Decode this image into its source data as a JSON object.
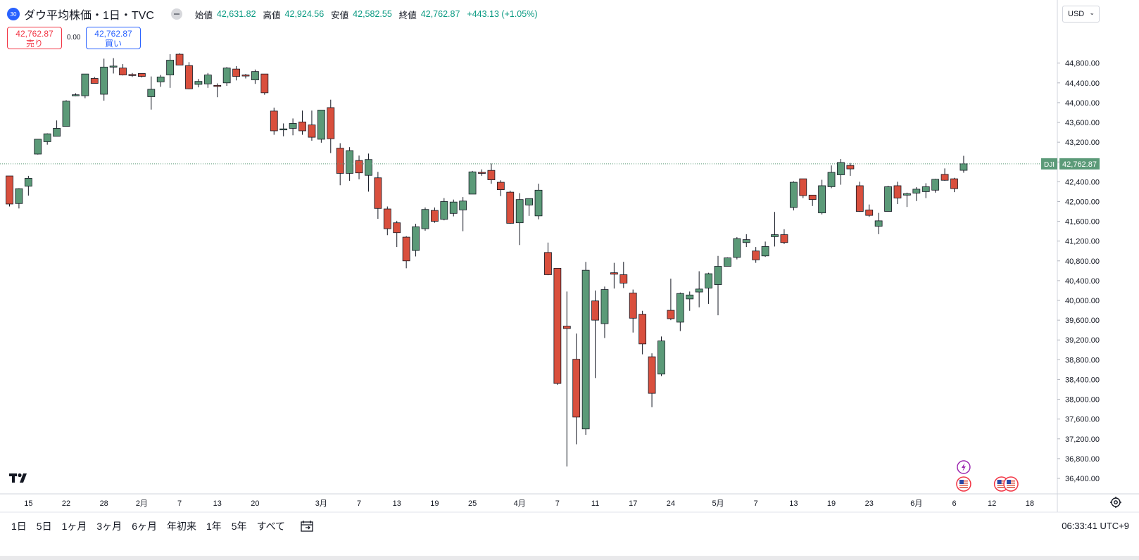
{
  "header": {
    "badge": "30",
    "symbol_title": "ダウ平均株価・1日・TVC",
    "open_label": "始値",
    "open_value": "42,631.82",
    "high_label": "高値",
    "high_value": "42,924.56",
    "low_label": "安値",
    "low_value": "42,582.55",
    "close_label": "終値",
    "close_value": "42,762.87",
    "change": "+443.13 (+1.05%)"
  },
  "trade": {
    "sell_price": "42,762.87",
    "sell_label": "売り",
    "spread": "0.00",
    "buy_price": "42,762.87",
    "buy_label": "買い"
  },
  "currency": {
    "value": "USD"
  },
  "ranges": [
    "1日",
    "5日",
    "1ヶ月",
    "3ヶ月",
    "6ヶ月",
    "年初来",
    "1年",
    "5年",
    "すべて"
  ],
  "clock": "06:33:41 UTC+9",
  "icons": [
    "visibility-eye-icon",
    "chevron-down-icon",
    "tradingview-logo-icon",
    "go-to-date-icon",
    "chart-settings-icon",
    "lightning-event-icon",
    "us-flag-event-icon"
  ],
  "colors": {
    "up": "#5b9a78",
    "down": "#d94f3d",
    "last_price_line": "#5b9a78"
  },
  "chart_data": {
    "type": "candlestick",
    "symbol_label": "DJI",
    "last_price": 42762.87,
    "ylim": [
      36200,
      45100
    ],
    "y_ticks": [
      36400,
      36800,
      37200,
      37600,
      38000,
      38400,
      38800,
      39200,
      39600,
      40000,
      40400,
      40800,
      41200,
      41600,
      42000,
      42400,
      42800,
      43200,
      43600,
      44000,
      44400,
      44800
    ],
    "x_labels": [
      {
        "text": "15",
        "index": 2
      },
      {
        "text": "22",
        "index": 6
      },
      {
        "text": "28",
        "index": 10
      },
      {
        "text": "2月",
        "index": 14
      },
      {
        "text": "7",
        "index": 18
      },
      {
        "text": "13",
        "index": 22
      },
      {
        "text": "20",
        "index": 26
      },
      {
        "text": "3月",
        "index": 33
      },
      {
        "text": "7",
        "index": 37
      },
      {
        "text": "13",
        "index": 41
      },
      {
        "text": "19",
        "index": 45
      },
      {
        "text": "25",
        "index": 49
      },
      {
        "text": "4月",
        "index": 54
      },
      {
        "text": "7",
        "index": 58
      },
      {
        "text": "11",
        "index": 62
      },
      {
        "text": "17",
        "index": 66
      },
      {
        "text": "24",
        "index": 70
      },
      {
        "text": "5月",
        "index": 75
      },
      {
        "text": "7",
        "index": 79
      },
      {
        "text": "13",
        "index": 83
      },
      {
        "text": "19",
        "index": 87
      },
      {
        "text": "23",
        "index": 91
      },
      {
        "text": "6月",
        "index": 96
      },
      {
        "text": "6",
        "index": 100
      },
      {
        "text": "12",
        "index": 104
      },
      {
        "text": "18",
        "index": 108
      }
    ],
    "candles": [
      [
        42518,
        42518,
        41900,
        41950
      ],
      [
        41960,
        42270,
        41860,
        42260
      ],
      [
        42310,
        42520,
        42120,
        42470
      ],
      [
        42960,
        43240,
        42950,
        43260
      ],
      [
        43210,
        43380,
        43150,
        43370
      ],
      [
        43320,
        43640,
        43320,
        43480
      ],
      [
        43520,
        44050,
        43520,
        44030
      ],
      [
        44150,
        44190,
        44130,
        44160
      ],
      [
        44140,
        44570,
        44090,
        44580
      ],
      [
        44490,
        44520,
        44390,
        44390
      ],
      [
        44170,
        44890,
        44040,
        44720
      ],
      [
        44720,
        44900,
        44590,
        44740
      ],
      [
        44700,
        44780,
        44550,
        44560
      ],
      [
        44570,
        44600,
        44520,
        44560
      ],
      [
        44590,
        44590,
        44510,
        44530
      ],
      [
        44120,
        44530,
        43860,
        44270
      ],
      [
        44420,
        44560,
        44320,
        44520
      ],
      [
        44560,
        44980,
        44300,
        44860
      ],
      [
        44980,
        45000,
        44810,
        44760
      ],
      [
        44750,
        44820,
        44270,
        44280
      ],
      [
        44370,
        44480,
        44310,
        44430
      ],
      [
        44380,
        44600,
        44300,
        44560
      ],
      [
        44350,
        44390,
        44110,
        44340
      ],
      [
        44400,
        44720,
        44340,
        44700
      ],
      [
        44680,
        44740,
        44450,
        44530
      ],
      [
        44560,
        44580,
        44490,
        44550
      ],
      [
        44460,
        44670,
        44380,
        44630
      ],
      [
        44580,
        44580,
        44160,
        44200
      ],
      [
        43830,
        43900,
        43350,
        43430
      ],
      [
        43450,
        43580,
        43320,
        43470
      ],
      [
        43480,
        43680,
        43340,
        43580
      ],
      [
        43610,
        43840,
        43350,
        43430
      ],
      [
        43550,
        43840,
        43230,
        43300
      ],
      [
        43260,
        43830,
        43190,
        43850
      ],
      [
        43900,
        44060,
        42980,
        43270
      ],
      [
        43080,
        43180,
        42330,
        42570
      ],
      [
        42570,
        43100,
        42420,
        43030
      ],
      [
        42830,
        42930,
        42450,
        42580
      ],
      [
        42530,
        42970,
        42200,
        42850
      ],
      [
        42480,
        42600,
        41650,
        41860
      ],
      [
        41850,
        41900,
        41320,
        41450
      ],
      [
        41570,
        41610,
        41080,
        41370
      ],
      [
        41280,
        41300,
        40650,
        40800
      ],
      [
        41010,
        41550,
        40890,
        41490
      ],
      [
        41450,
        41880,
        41410,
        41840
      ],
      [
        41820,
        41880,
        41570,
        41600
      ],
      [
        41640,
        42070,
        41620,
        42000
      ],
      [
        41760,
        42040,
        41700,
        41990
      ],
      [
        41830,
        42090,
        41400,
        42010
      ],
      [
        42150,
        42620,
        42150,
        42600
      ],
      [
        42590,
        42650,
        42520,
        42580
      ],
      [
        42630,
        42770,
        42360,
        42440
      ],
      [
        42390,
        42430,
        42110,
        42240
      ],
      [
        42190,
        42220,
        41550,
        41560
      ],
      [
        41570,
        42170,
        41120,
        42040
      ],
      [
        41930,
        42030,
        41710,
        42060
      ],
      [
        41710,
        42360,
        41640,
        42230
      ],
      [
        40970,
        41170,
        40510,
        40520
      ],
      [
        40650,
        40650,
        38290,
        38320
      ],
      [
        39480,
        40180,
        36640,
        39430
      ],
      [
        38810,
        39330,
        37090,
        37640
      ],
      [
        37400,
        40780,
        37280,
        40610
      ],
      [
        39990,
        40200,
        38430,
        39600
      ],
      [
        39530,
        40280,
        39240,
        40220
      ],
      [
        40560,
        40760,
        40240,
        40530
      ],
      [
        40520,
        40780,
        40250,
        40350
      ],
      [
        40150,
        40220,
        39350,
        39640
      ],
      [
        39720,
        39790,
        38910,
        39120
      ],
      [
        38860,
        38930,
        37840,
        38120
      ],
      [
        38510,
        39270,
        38470,
        39180
      ],
      [
        39800,
        40440,
        39600,
        39630
      ],
      [
        39560,
        40160,
        39380,
        40140
      ],
      [
        40030,
        40180,
        39790,
        40110
      ],
      [
        40170,
        40590,
        39860,
        40230
      ],
      [
        40250,
        40560,
        39930,
        40540
      ],
      [
        40320,
        40900,
        39700,
        40690
      ],
      [
        40690,
        40870,
        40690,
        40860
      ],
      [
        40870,
        41280,
        40830,
        41250
      ],
      [
        41170,
        41340,
        41080,
        41230
      ],
      [
        41000,
        41080,
        40760,
        40820
      ],
      [
        40900,
        41190,
        40880,
        41090
      ],
      [
        41290,
        41790,
        41090,
        41330
      ],
      [
        41330,
        41440,
        41140,
        41170
      ],
      [
        41880,
        42410,
        41820,
        42390
      ],
      [
        42460,
        42460,
        42070,
        42120
      ],
      [
        42130,
        42130,
        41910,
        42040
      ],
      [
        41770,
        42440,
        41740,
        42320
      ],
      [
        42300,
        42730,
        42270,
        42590
      ],
      [
        42540,
        42860,
        42340,
        42790
      ],
      [
        42730,
        42780,
        42520,
        42660
      ],
      [
        42320,
        42400,
        41790,
        41800
      ],
      [
        41830,
        41940,
        41690,
        41720
      ],
      [
        41500,
        41770,
        41340,
        41610
      ],
      [
        41800,
        42320,
        41830,
        42300
      ],
      [
        42320,
        42400,
        41950,
        42070
      ],
      [
        42130,
        42180,
        41890,
        42160
      ],
      [
        42170,
        42290,
        42010,
        42250
      ],
      [
        42200,
        42370,
        42070,
        42300
      ],
      [
        42230,
        42460,
        42180,
        42450
      ],
      [
        42550,
        42670,
        42420,
        42430
      ],
      [
        42460,
        42480,
        42190,
        42260
      ],
      [
        42631.82,
        42924.56,
        42582.55,
        42762.87
      ]
    ]
  }
}
